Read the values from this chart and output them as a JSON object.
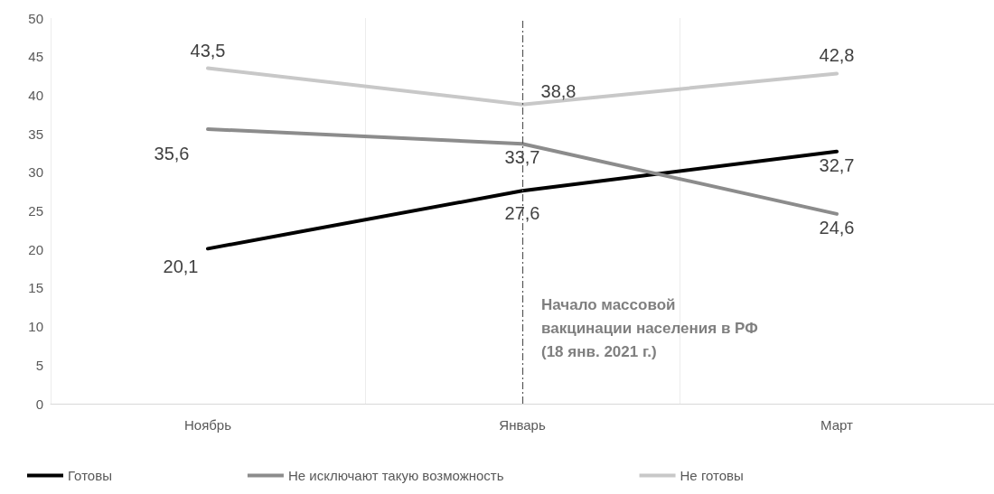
{
  "chart_data": {
    "type": "line",
    "categories": [
      "Ноябрь",
      "Январь",
      "Март"
    ],
    "series": [
      {
        "name": "Готовы",
        "color": "#000000",
        "values": [
          20.1,
          27.6,
          32.7
        ],
        "value_labels": [
          "20,1",
          "27,6",
          "32,7"
        ]
      },
      {
        "name": "Не исключают такую возможность",
        "color": "#8c8c8c",
        "values": [
          35.6,
          33.7,
          24.6
        ],
        "value_labels": [
          "35,6",
          "33,7",
          "24,6"
        ]
      },
      {
        "name": "Не готовы",
        "color": "#c8c8c8",
        "values": [
          43.5,
          38.8,
          42.8
        ],
        "value_labels": [
          "43,5",
          "38,8",
          "42,8"
        ]
      }
    ],
    "ylim": [
      0,
      50
    ],
    "yticks": [
      0,
      5,
      10,
      15,
      20,
      25,
      30,
      35,
      40,
      45,
      50
    ],
    "grid": "x",
    "legend": "bottom",
    "marker": "none",
    "line_style": "solid",
    "ref_lines": [
      {
        "axis": "x",
        "value": "Январь",
        "label": "Начало массовой вакцинации населения в РФ (18 янв. 2021 г.)",
        "color": "#555555",
        "line_style": "dashdot"
      }
    ]
  }
}
